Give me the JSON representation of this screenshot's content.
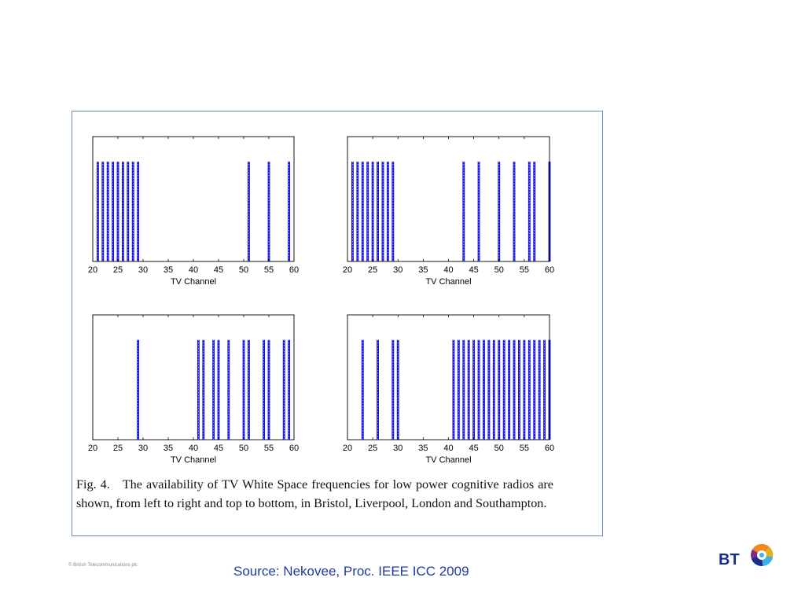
{
  "caption": {
    "fig_label": "Fig. 4.",
    "text": "The availability of TV White Space frequencies for low power cognitive radios are shown, from left to right and top to bottom, in Bristol, Liverpool, London and Southampton."
  },
  "footer": {
    "copyright": "© British Telecommunications plc",
    "source": "Source: Nekovee, Proc.  IEEE ICC 2009",
    "logo_text": "BT"
  },
  "colors": {
    "bar": "#1414e6",
    "frame": "#6a8fbf",
    "source": "#1f3aa0",
    "logo_blue": "#1b2f8a",
    "logo_purple": "#7a2a8a",
    "logo_orange": "#f08a1c",
    "logo_cyan": "#3ab4e6"
  },
  "chart_data": [
    {
      "type": "bar",
      "xlabel": "TV Channel",
      "xlim": [
        20,
        60
      ],
      "xticks": [
        20,
        25,
        30,
        35,
        40,
        45,
        50,
        55,
        60
      ],
      "ylim": [
        0,
        1.25
      ],
      "yticks": [],
      "channels": [
        21,
        22,
        23,
        24,
        25,
        26,
        27,
        28,
        29,
        51,
        55,
        59
      ],
      "values": [
        1,
        1,
        1,
        1,
        1,
        1,
        1,
        1,
        1,
        1,
        1,
        1
      ]
    },
    {
      "type": "bar",
      "xlabel": "TV Channel",
      "xlim": [
        20,
        60
      ],
      "xticks": [
        20,
        25,
        30,
        35,
        40,
        45,
        50,
        55,
        60
      ],
      "ylim": [
        0,
        1.25
      ],
      "yticks": [],
      "channels": [
        21,
        22,
        23,
        24,
        25,
        26,
        27,
        28,
        29,
        43,
        46,
        50,
        53,
        56,
        57,
        60
      ],
      "values": [
        1,
        1,
        1,
        1,
        1,
        1,
        1,
        1,
        1,
        1,
        1,
        1,
        1,
        1,
        1,
        1
      ]
    },
    {
      "type": "bar",
      "xlabel": "TV Channel",
      "xlim": [
        20,
        60
      ],
      "xticks": [
        20,
        25,
        30,
        35,
        40,
        45,
        50,
        55,
        60
      ],
      "ylim": [
        0,
        1.25
      ],
      "yticks": [],
      "channels": [
        29,
        41,
        42,
        44,
        45,
        47,
        50,
        51,
        54,
        55,
        58,
        59
      ],
      "values": [
        1,
        1,
        1,
        1,
        1,
        1,
        1,
        1,
        1,
        1,
        1,
        1
      ]
    },
    {
      "type": "bar",
      "xlabel": "TV Channel",
      "xlim": [
        20,
        60
      ],
      "xticks": [
        20,
        25,
        30,
        35,
        40,
        45,
        50,
        55,
        60
      ],
      "ylim": [
        0,
        1.25
      ],
      "yticks": [],
      "channels": [
        23,
        26,
        29,
        30,
        41,
        42,
        43,
        44,
        45,
        46,
        47,
        48,
        49,
        50,
        51,
        52,
        53,
        54,
        55,
        56,
        57,
        58,
        59,
        60
      ],
      "values": [
        1,
        1,
        1,
        1,
        1,
        1,
        1,
        1,
        1,
        1,
        1,
        1,
        1,
        1,
        1,
        1,
        1,
        1,
        1,
        1,
        1,
        1,
        1,
        1
      ]
    }
  ]
}
